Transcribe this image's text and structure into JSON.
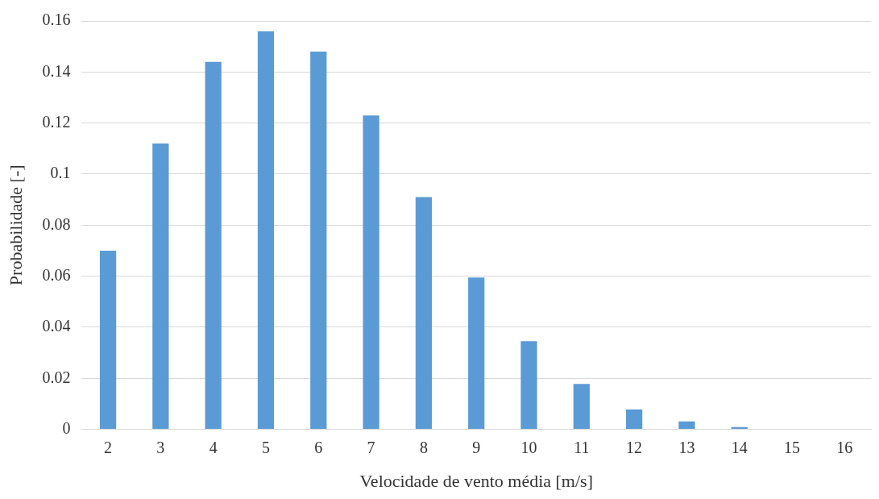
{
  "chart_data": {
    "type": "bar",
    "xlabel": "Velocidade de vento média [m/s]",
    "ylabel": "Probabilidade [-]",
    "categories": [
      "2",
      "3",
      "4",
      "5",
      "6",
      "7",
      "8",
      "9",
      "10",
      "11",
      "12",
      "13",
      "14",
      "15",
      "16"
    ],
    "values": [
      0.07,
      0.112,
      0.144,
      0.156,
      0.148,
      0.123,
      0.091,
      0.0595,
      0.0345,
      0.0178,
      0.0078,
      0.0031,
      0.0009,
      0,
      0
    ],
    "color": "#5b9bd5",
    "ylim": [
      0,
      0.16
    ],
    "yticks": [
      0,
      0.02,
      0.04,
      0.06,
      0.08,
      0.1,
      0.12,
      0.14,
      0.16
    ],
    "grid": "y",
    "legend": false
  }
}
